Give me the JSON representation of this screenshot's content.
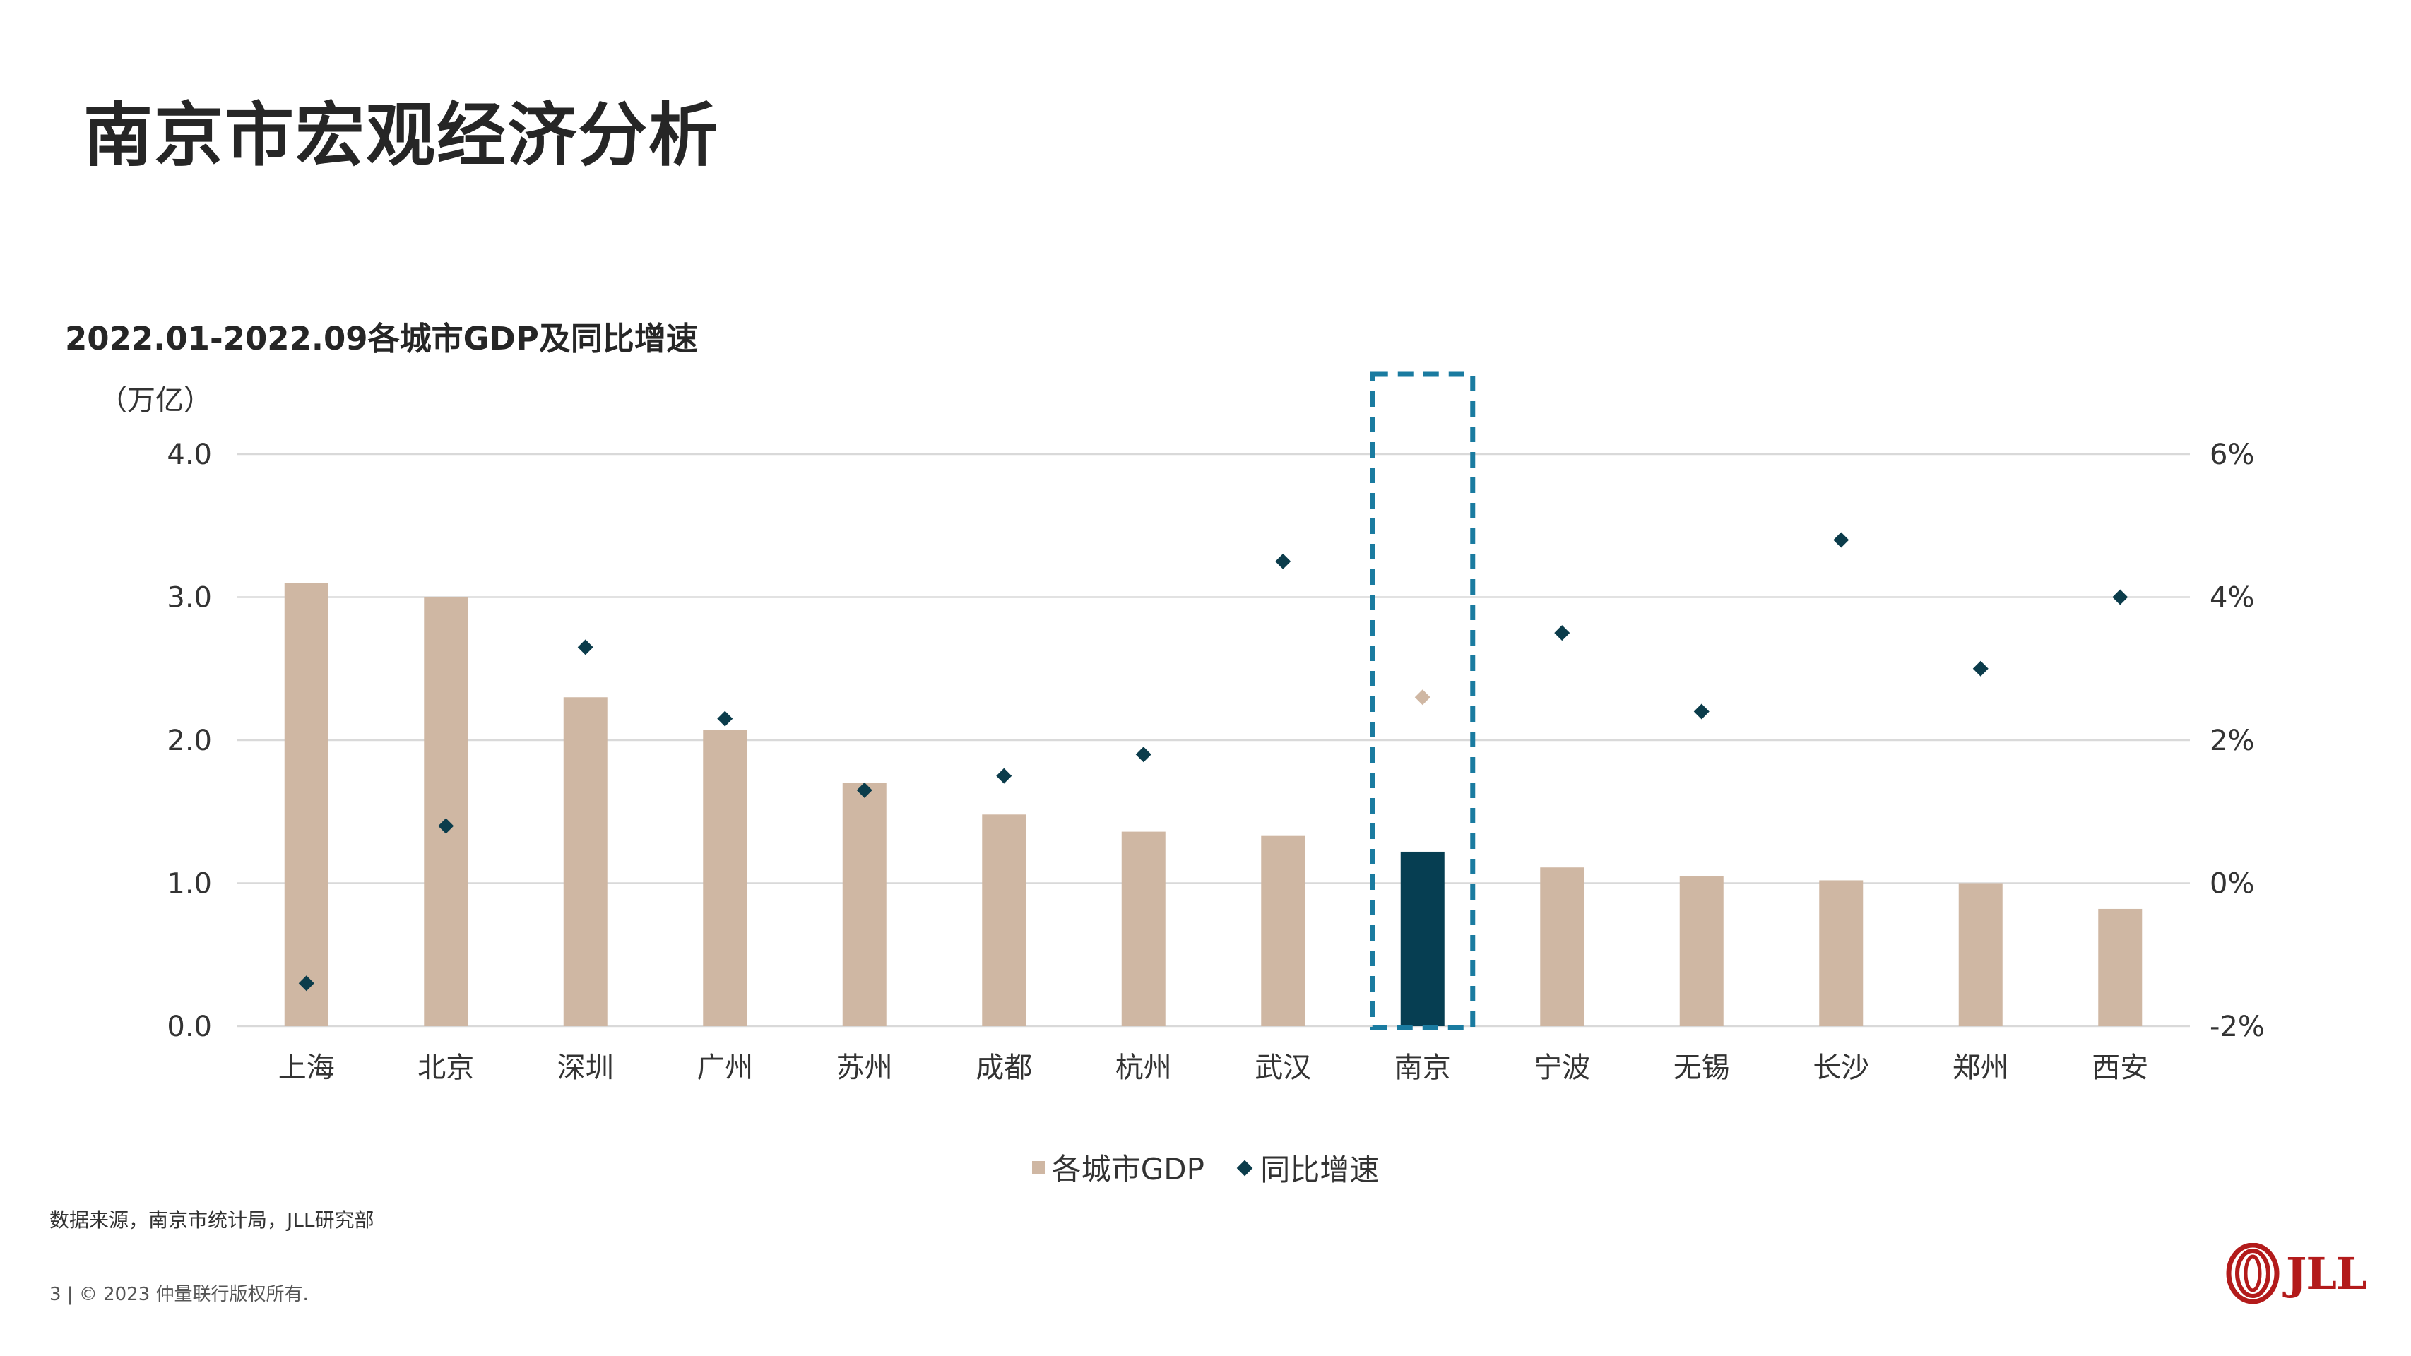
{
  "slide": {
    "title": "南京市宏观经济分析",
    "source": "数据来源，南京市统计局，JLL研究部",
    "footer": "3 | © 2023 仲量联行版权所有.",
    "logo_text": "JLL"
  },
  "chart_data": {
    "type": "bar",
    "title": "2022.01-2022.09各城市GDP及同比增速",
    "y_unit_label": "（万亿）",
    "categories": [
      "上海",
      "北京",
      "深圳",
      "广州",
      "苏州",
      "成都",
      "杭州",
      "武汉",
      "南京",
      "宁波",
      "无锡",
      "长沙",
      "郑州",
      "西安"
    ],
    "series": [
      {
        "name": "各城市GDP",
        "type": "bar",
        "axis": "left",
        "values": [
          3.1,
          3.0,
          2.3,
          2.07,
          1.7,
          1.48,
          1.36,
          1.33,
          1.22,
          1.11,
          1.05,
          1.02,
          1.0,
          0.82
        ]
      },
      {
        "name": "同比增速",
        "type": "scatter",
        "axis": "right",
        "values": [
          -1.4,
          0.8,
          3.3,
          2.3,
          1.3,
          1.5,
          1.8,
          4.5,
          2.6,
          3.5,
          2.4,
          4.8,
          3.0,
          4.0
        ]
      }
    ],
    "y_left": {
      "min": 0,
      "max": 4,
      "ticks": [
        "0.0",
        "1.0",
        "2.0",
        "3.0",
        "4.0"
      ]
    },
    "y_right": {
      "min": -2,
      "max": 6,
      "ticks": [
        "-2%",
        "0%",
        "2%",
        "4%",
        "6%"
      ]
    },
    "highlight_category": "南京",
    "colors": {
      "bar": "#CFB7A3",
      "bar_highlight": "#063E52",
      "marker": "#0B3C4B",
      "marker_highlight": "#CFB7A3",
      "highlight_box": "#1A7BA0",
      "grid": "#D9D9D9"
    },
    "grid": true,
    "legend_position": "bottom"
  }
}
